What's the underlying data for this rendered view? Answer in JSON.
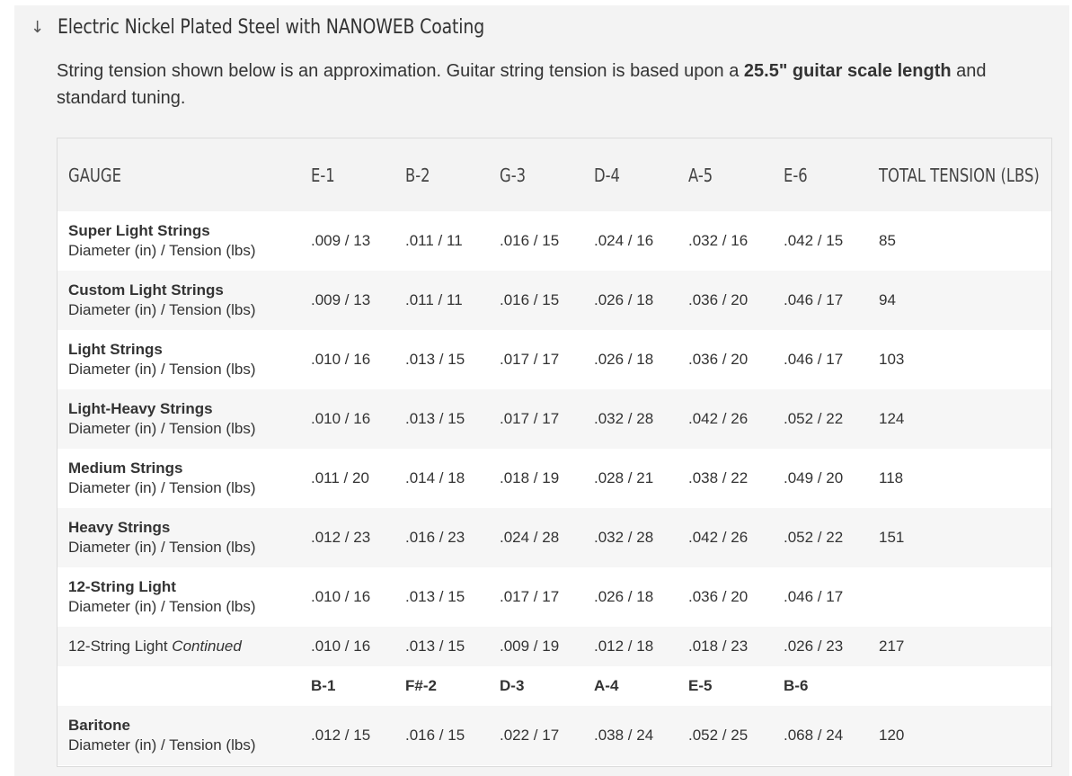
{
  "section": {
    "title": "Electric Nickel Plated Steel with NANOWEB Coating"
  },
  "intro": {
    "text_before": "String tension shown below is an approximation. Guitar string tension is based upon a ",
    "bold": "25.5\" guitar scale length",
    "text_after": " and standard tuning."
  },
  "table": {
    "headers": [
      "GAUGE",
      "E-1",
      "B-2",
      "G-3",
      "D-4",
      "A-5",
      "E-6",
      "TOTAL TENSION (LBS)"
    ],
    "subtitle": "Diameter (in) / Tension (lbs)",
    "rows": [
      {
        "name": "Super Light Strings",
        "cells": [
          ".009 / 13",
          ".011 / 11",
          ".016 / 15",
          ".024 / 16",
          ".032 / 16",
          ".042 / 15"
        ],
        "total": "85"
      },
      {
        "name": "Custom Light Strings",
        "cells": [
          ".009 / 13",
          ".011 / 11",
          ".016 / 15",
          ".026 / 18",
          ".036 / 20",
          ".046 / 17"
        ],
        "total": "94"
      },
      {
        "name": "Light Strings",
        "cells": [
          ".010 / 16",
          ".013 / 15",
          ".017 / 17",
          ".026 / 18",
          ".036 / 20",
          ".046 / 17"
        ],
        "total": "103"
      },
      {
        "name": "Light-Heavy Strings",
        "cells": [
          ".010 / 16",
          ".013 / 15",
          ".017 / 17",
          ".032 / 28",
          ".042 / 26",
          ".052 / 22"
        ],
        "total": "124"
      },
      {
        "name": "Medium Strings",
        "cells": [
          ".011 / 20",
          ".014 / 18",
          ".018 / 19",
          ".028 / 21",
          ".038 / 22",
          ".049 / 20"
        ],
        "total": "118"
      },
      {
        "name": "Heavy Strings",
        "cells": [
          ".012 / 23",
          ".016 / 23",
          ".024 / 28",
          ".032 / 28",
          ".042 / 26",
          ".052 / 22"
        ],
        "total": "151"
      },
      {
        "name": "12-String Light",
        "cells": [
          ".010 / 16",
          ".013 / 15",
          ".017 / 17",
          ".026 / 18",
          ".036 / 20",
          ".046 / 17"
        ],
        "total": ""
      }
    ],
    "continued": {
      "label": "12-String Light ",
      "label_italic": "Continued",
      "cells": [
        ".010 / 16",
        ".013 / 15",
        ".009 / 19",
        ".012 / 18",
        ".018 / 23",
        ".026 / 23"
      ],
      "total": "217"
    },
    "baritone_tuning": [
      "B-1",
      "F#-2",
      "D-3",
      "A-4",
      "E-5",
      "B-6"
    ],
    "baritone": {
      "name": "Baritone",
      "cells": [
        ".012 / 15",
        ".016 / 15",
        ".022 / 17",
        ".038 / 24",
        ".052 / 25",
        ".068 / 24"
      ],
      "total": "120"
    }
  }
}
